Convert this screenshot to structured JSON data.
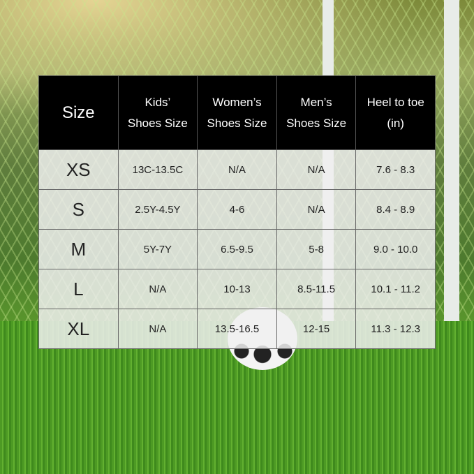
{
  "table": {
    "header": [
      [
        "Size"
      ],
      [
        "Kids’",
        "Shoes Size"
      ],
      [
        "Women’s",
        "Shoes Size"
      ],
      [
        "Men’s",
        "Shoes Size"
      ],
      [
        "Heel to toe",
        "(in)"
      ]
    ],
    "rows": [
      [
        "XS",
        "13C-13.5C",
        "N/A",
        "N/A",
        "7.6 - 8.3"
      ],
      [
        "S",
        "2.5Y-4.5Y",
        "4-6",
        "N/A",
        "8.4 - 8.9"
      ],
      [
        "M",
        "5Y-7Y",
        "6.5-9.5",
        "5-8",
        "9.0 - 10.0"
      ],
      [
        "L",
        "N/A",
        "10-13",
        "8.5-11.5",
        "10.1 - 11.2"
      ],
      [
        "XL",
        "N/A",
        "13.5-16.5",
        "12-15",
        "11.3 - 12.3"
      ]
    ]
  }
}
